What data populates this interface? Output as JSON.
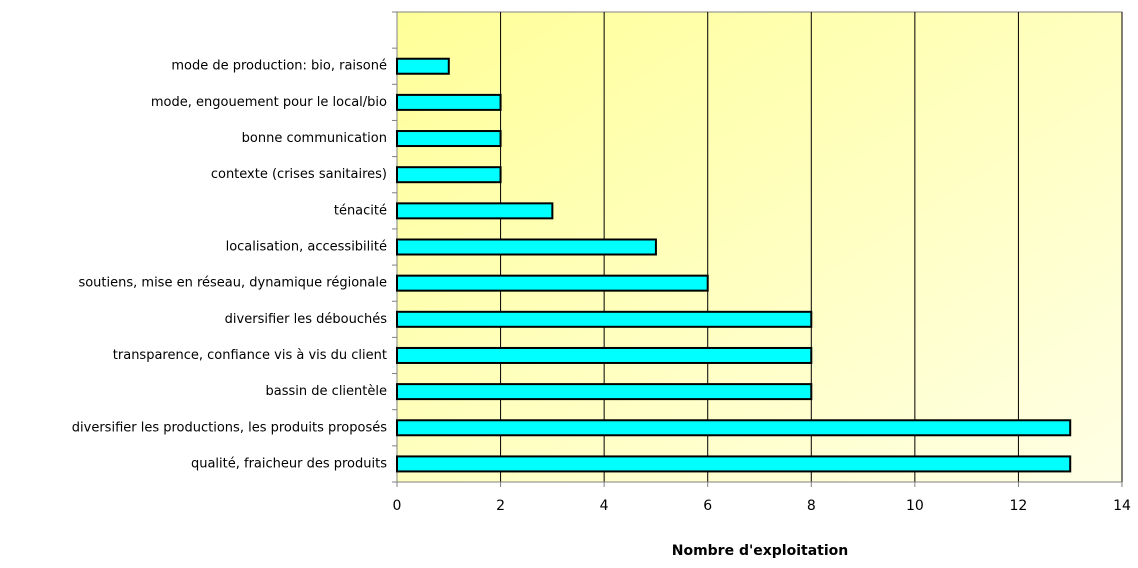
{
  "chart_data": {
    "type": "barh",
    "xlabel": "Nombre d'exploitation",
    "categories": [
      null,
      "mode de production: bio, raisoné",
      "mode, engouement pour le local/bio",
      "bonne communication",
      "contexte (crises sanitaires)",
      "ténacité",
      "localisation, accessibilité",
      "soutiens, mise en réseau, dynamique régionale",
      "diversifier les débouchés",
      "transparence, confiance vis à vis du client",
      "bassin de clientèle",
      "diversifier les productions, les produits proposés",
      "qualité, fraicheur des produits"
    ],
    "values": [
      null,
      1,
      2,
      2,
      2,
      3,
      5,
      6,
      8,
      8,
      8,
      13,
      13
    ],
    "color": "#00ffff",
    "xlim": [
      0,
      14
    ],
    "xticks": [
      0,
      2,
      4,
      6,
      8,
      10,
      12,
      14
    ],
    "grid": true
  }
}
